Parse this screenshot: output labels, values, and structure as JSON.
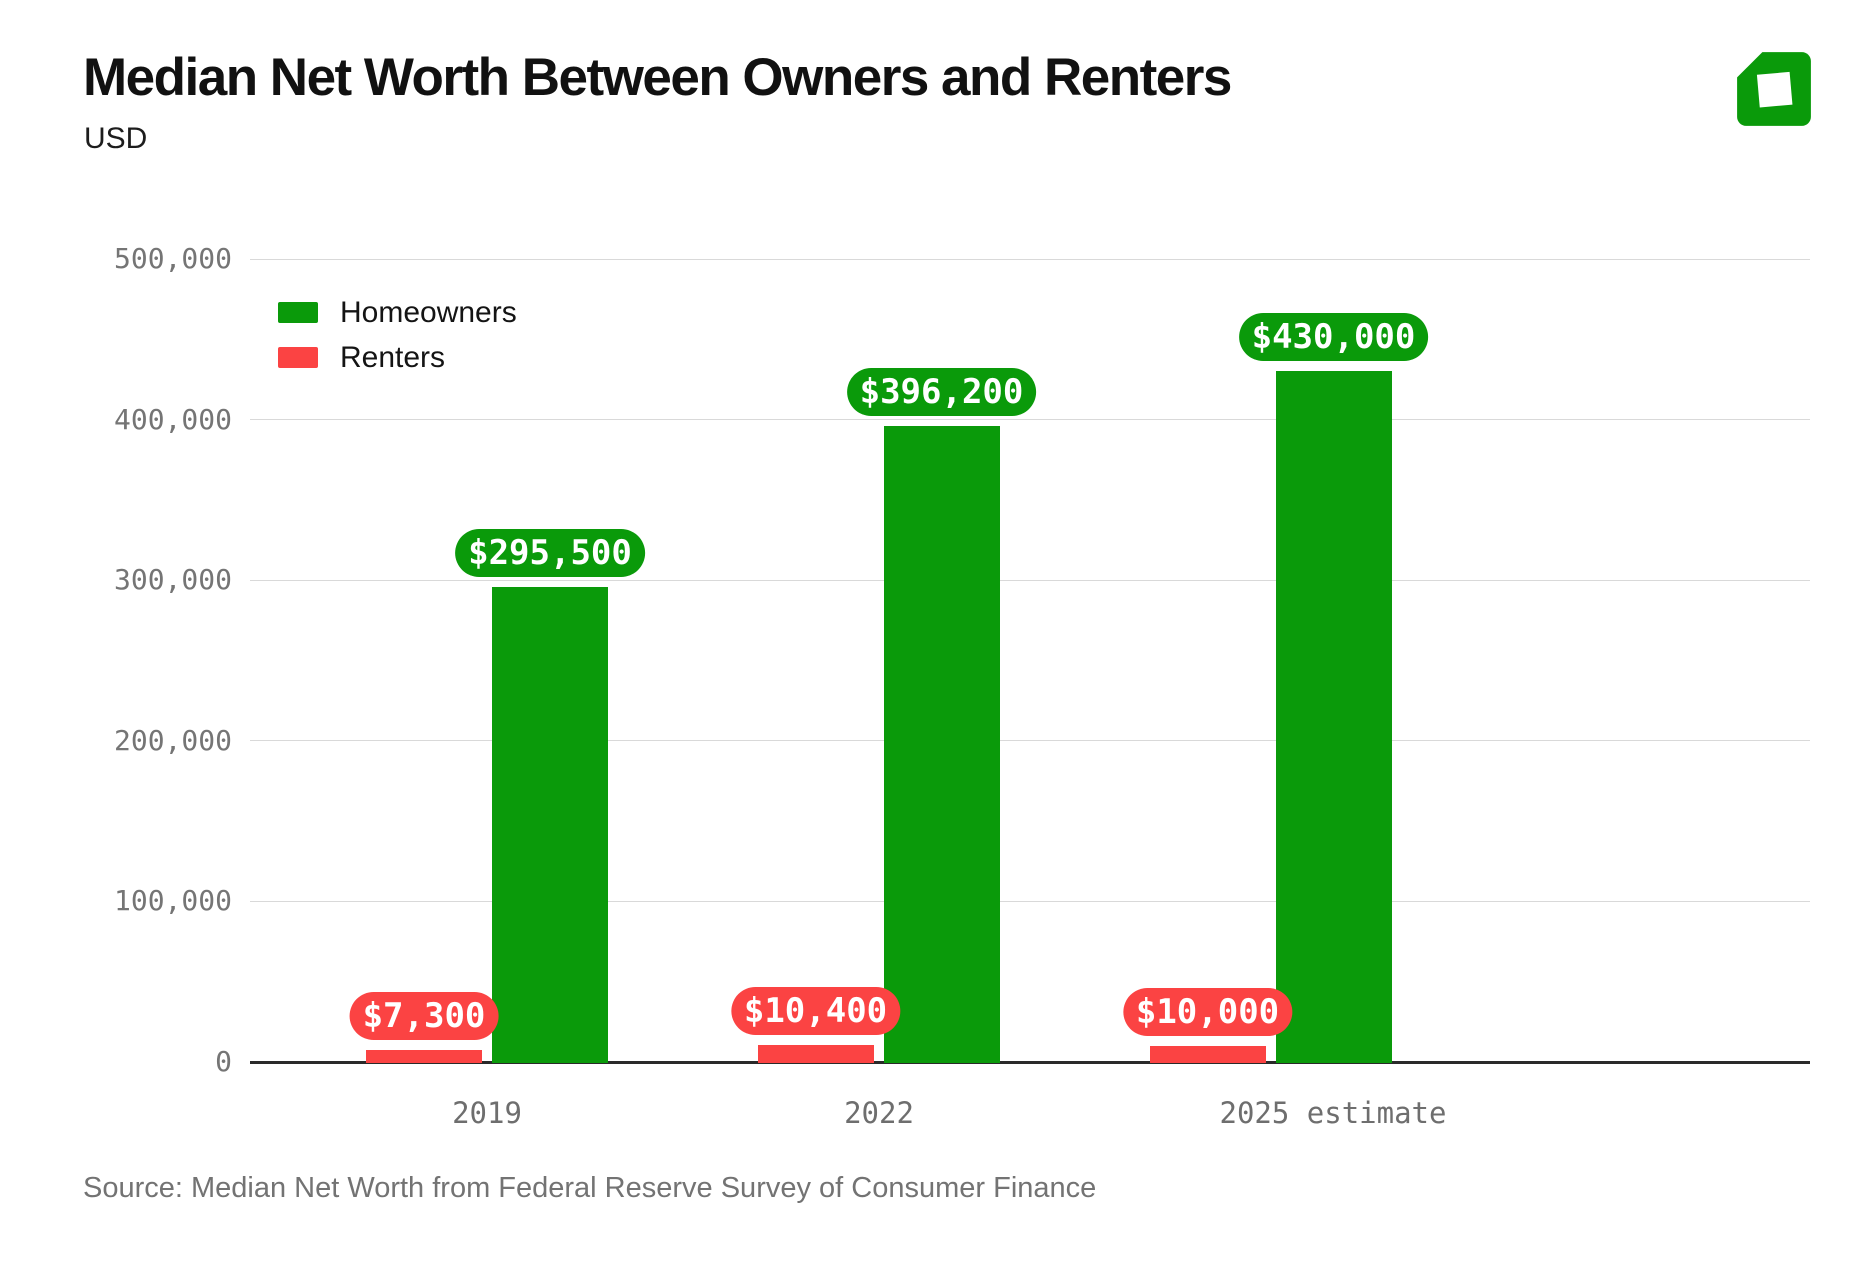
{
  "header": {
    "title": "Median Net Worth Between Owners and Renters",
    "subtitle": "USD"
  },
  "legend": [
    {
      "label": "Homeowners",
      "color": "#0a9a0a"
    },
    {
      "label": "Renters",
      "color": "#fb4343"
    }
  ],
  "chart_data": {
    "type": "bar",
    "title": "Median Net Worth Between Owners and Renters",
    "unit": "USD",
    "categories": [
      "2019",
      "2022",
      "2025 estimate"
    ],
    "series": [
      {
        "name": "Homeowners",
        "color": "#0a9a0a",
        "values": [
          295500,
          396200,
          430000
        ],
        "labels": [
          "$295,500",
          "$396,200",
          "$430,000"
        ]
      },
      {
        "name": "Renters",
        "color": "#fb4343",
        "values": [
          7300,
          10400,
          10000
        ],
        "labels": [
          "$7,300",
          "$10,400",
          "$10,000"
        ]
      }
    ],
    "ylim": [
      0,
      500000
    ],
    "yticks": [
      0,
      100000,
      200000,
      300000,
      400000,
      500000
    ],
    "ytick_labels": [
      "0",
      "100,000",
      "200,000",
      "300,000",
      "400,000",
      "500,000"
    ],
    "grid": true,
    "legend_position": "top-left"
  },
  "colors": {
    "homeowners_green": "#0a9a0a",
    "renters_red": "#fb4343",
    "gridline": "#d9d9d9",
    "axis_text": "#757575"
  },
  "footer": {
    "source": "Source: Median Net Worth from Federal Reserve Survey of Consumer Finance"
  }
}
